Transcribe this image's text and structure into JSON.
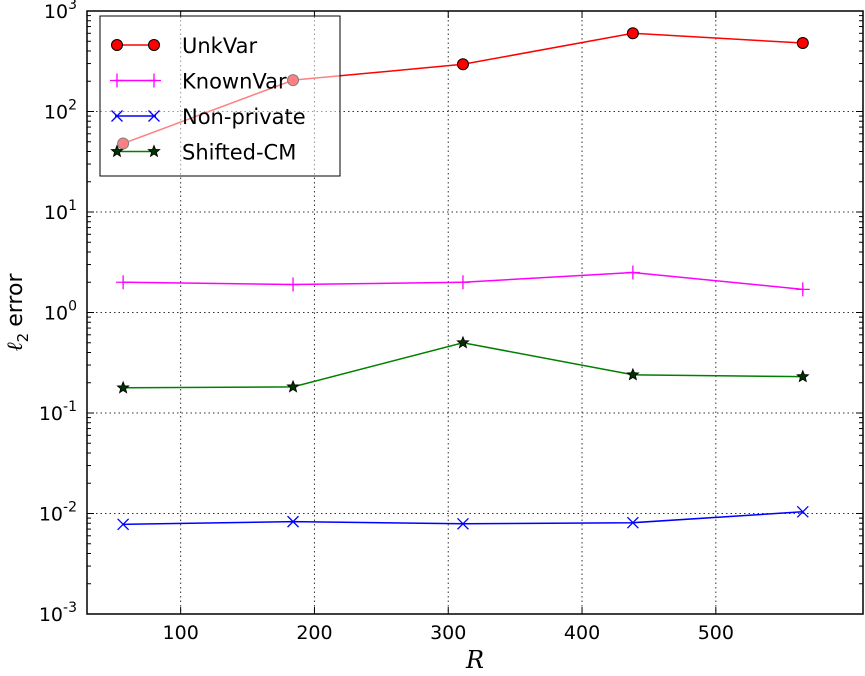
{
  "chart_data": {
    "type": "line",
    "xlabel": "R",
    "ylabel": "error",
    "ylabel_symbol": "ℓ",
    "ylabel_subscript": "2",
    "xlim": [
      30,
      610
    ],
    "ylim": [
      0.001,
      1000
    ],
    "yscale": "log",
    "grid": true,
    "legend_position": "top-left",
    "x_ticks": [
      100,
      200,
      300,
      400,
      500
    ],
    "y_ticks": [
      {
        "base": "10",
        "exp": "-3",
        "value": 0.001
      },
      {
        "base": "10",
        "exp": "-2",
        "value": 0.01
      },
      {
        "base": "10",
        "exp": "-1",
        "value": 0.1
      },
      {
        "base": "10",
        "exp": "0",
        "value": 1
      },
      {
        "base": "10",
        "exp": "1",
        "value": 10
      },
      {
        "base": "10",
        "exp": "2",
        "value": 100
      },
      {
        "base": "10",
        "exp": "3",
        "value": 1000
      }
    ],
    "series": [
      {
        "name": "UnkVar",
        "color": "#ff0000",
        "marker": "circle",
        "x": [
          57,
          184,
          311,
          438,
          565
        ],
        "y": [
          48,
          205,
          295,
          600,
          480
        ]
      },
      {
        "name": "KnownVar",
        "color": "#ff00ff",
        "marker": "plus",
        "x": [
          57,
          184,
          311,
          438,
          565
        ],
        "y": [
          2.0,
          1.9,
          2.0,
          2.5,
          1.7
        ]
      },
      {
        "name": "Non-private",
        "color": "#0000ff",
        "marker": "x",
        "x": [
          57,
          184,
          311,
          438,
          565
        ],
        "y": [
          0.0078,
          0.0083,
          0.0079,
          0.0081,
          0.0104
        ]
      },
      {
        "name": "Shifted-CM",
        "color": "#007f00",
        "marker": "star",
        "x": [
          57,
          184,
          311,
          438,
          565
        ],
        "y": [
          0.178,
          0.182,
          0.5,
          0.24,
          0.23
        ]
      }
    ]
  }
}
